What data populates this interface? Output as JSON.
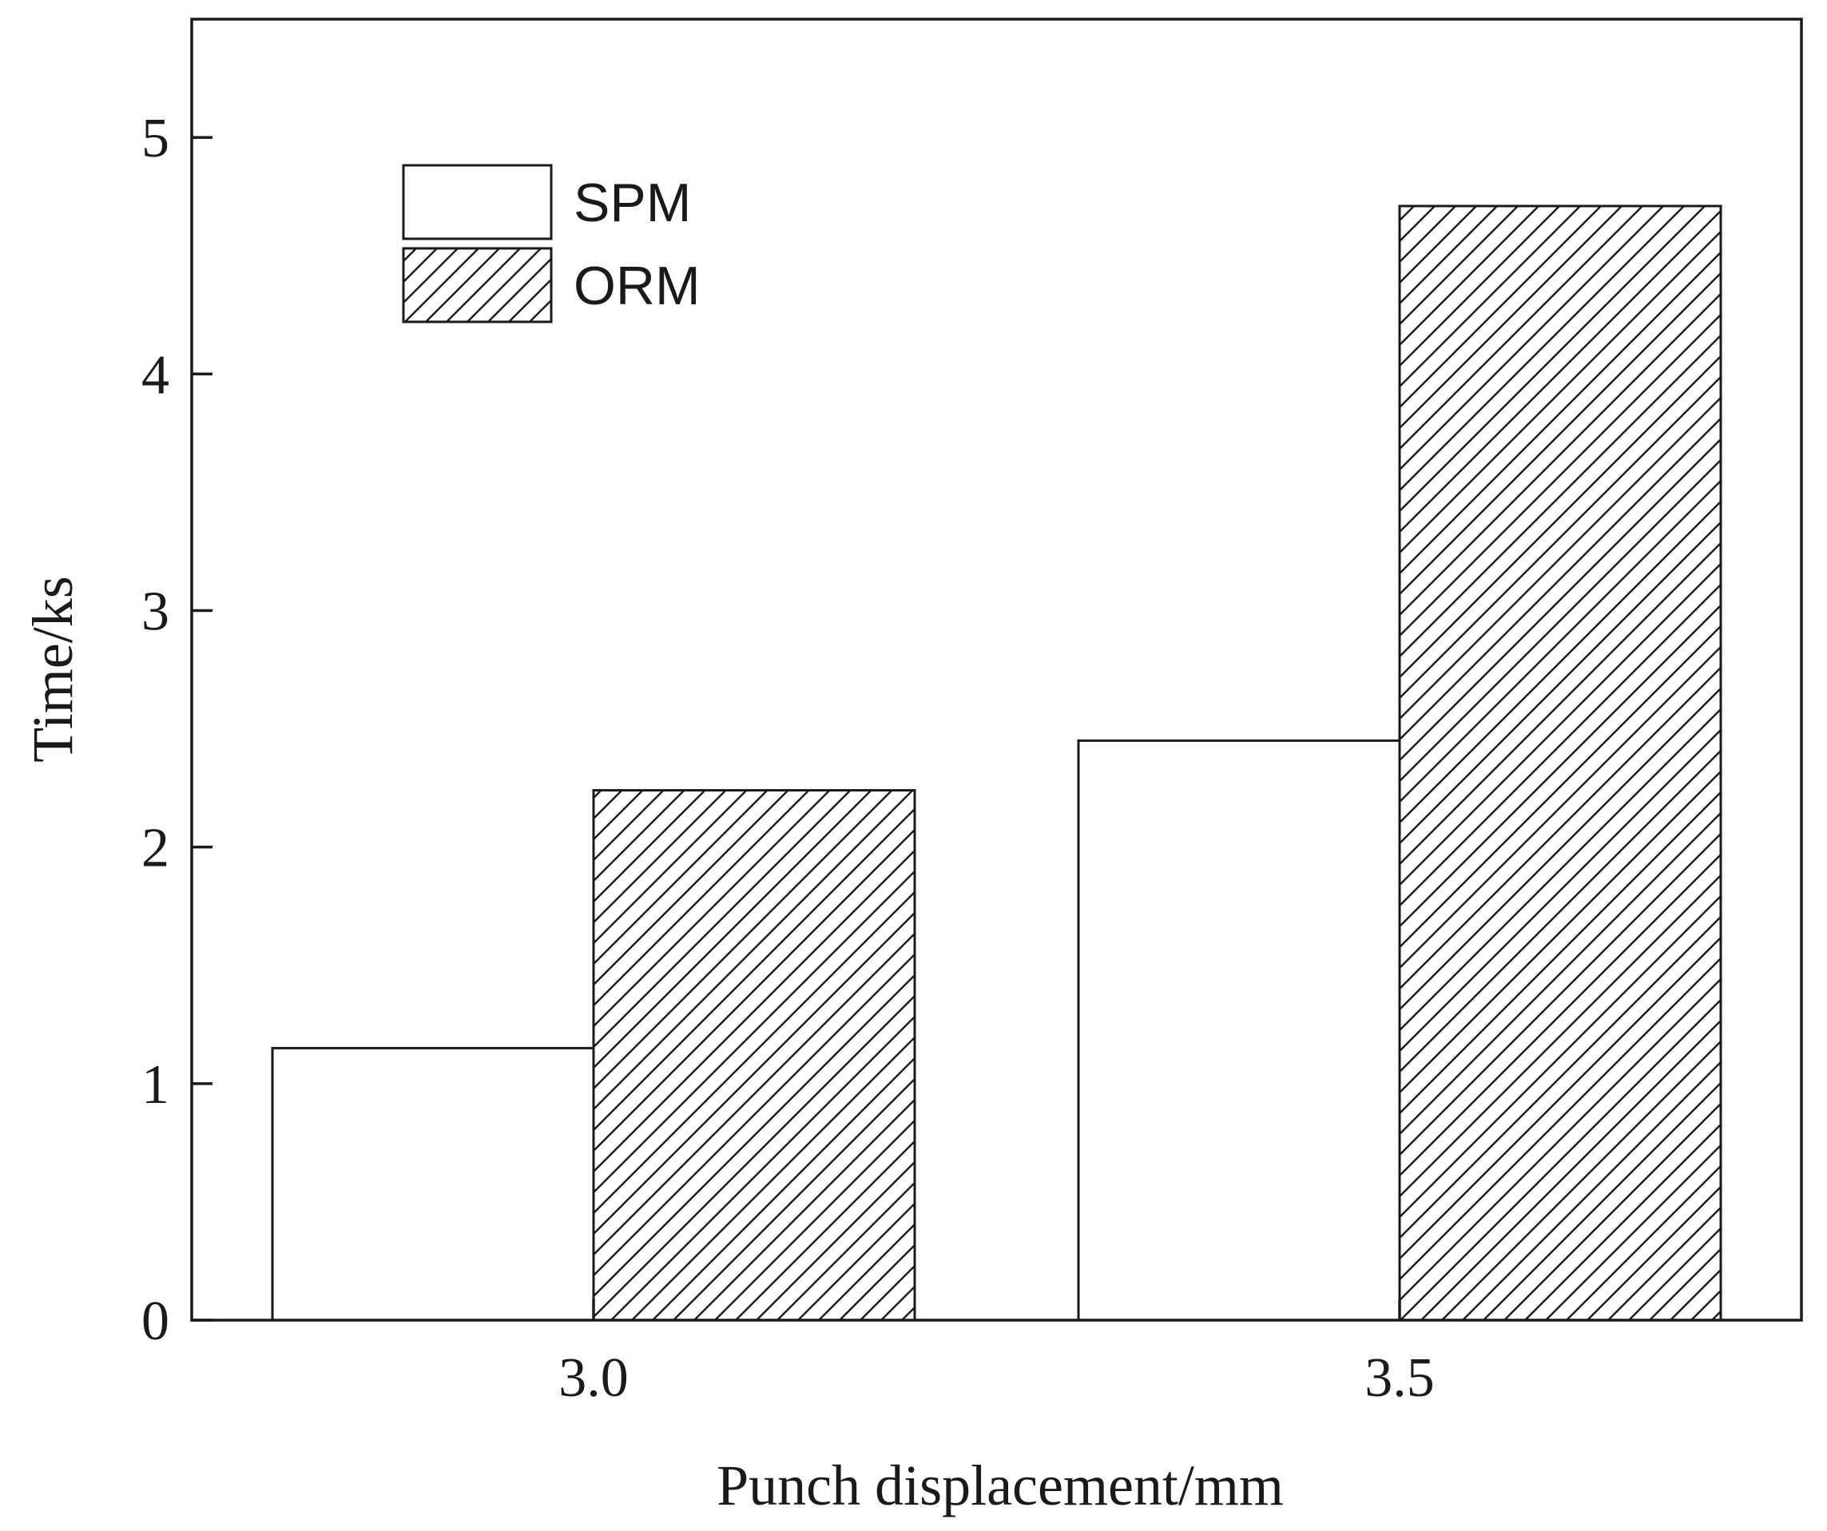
{
  "chart_data": {
    "type": "bar",
    "categories": [
      "3.0",
      "3.5"
    ],
    "series": [
      {
        "name": "SPM",
        "values": [
          1.15,
          2.45
        ],
        "fill": "#ffffff",
        "pattern": "none"
      },
      {
        "name": "ORM",
        "values": [
          2.24,
          4.71
        ],
        "fill": "#ffffff",
        "pattern": "diagonal-hatch"
      }
    ],
    "title": "",
    "xlabel": "Punch displacement/mm",
    "ylabel": "Time/ks",
    "ylim": [
      0,
      5.5
    ],
    "yticks": [
      0,
      1,
      2,
      3,
      4,
      5
    ],
    "ytick_labels": [
      "0",
      "1",
      "2",
      "3",
      "4",
      "5"
    ],
    "grid": false,
    "legend_position": "top-left",
    "colors": {
      "stroke": "#1a1a1a",
      "background": "#ffffff"
    }
  }
}
